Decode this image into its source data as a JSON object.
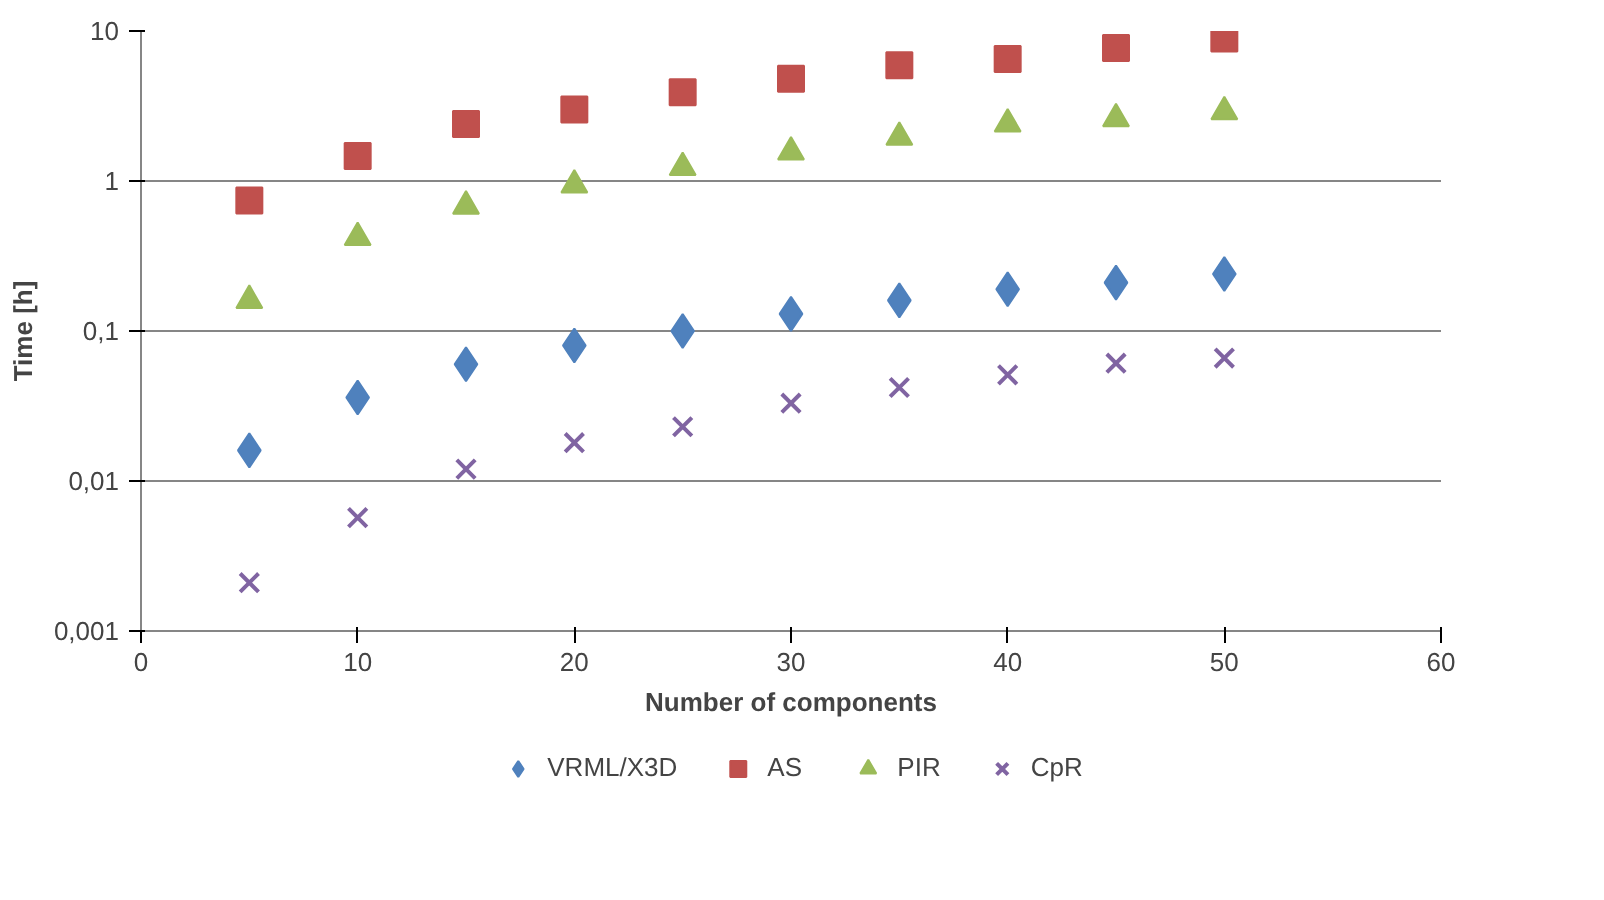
{
  "chart_data": {
    "type": "scatter",
    "xlabel": "Number of components",
    "ylabel": "Time [h]",
    "log": "y",
    "xlim": [
      0,
      60
    ],
    "xticks": [
      0,
      10,
      20,
      30,
      40,
      50,
      60
    ],
    "ylim": [
      0.001,
      10
    ],
    "yticks": [
      {
        "value": 0.001,
        "label": "0,001"
      },
      {
        "value": 0.01,
        "label": "0,01"
      },
      {
        "value": 0.1,
        "label": "0,1"
      },
      1,
      10
    ],
    "grid": "y",
    "legend": "bottom",
    "x": [
      5,
      10,
      15,
      20,
      25,
      30,
      35,
      40,
      45,
      50
    ],
    "series": [
      {
        "name": "VRML/X3D",
        "color": "#4f81bd",
        "marker": "diamond",
        "values": [
          0.016,
          0.036,
          0.06,
          0.08,
          0.1,
          0.13,
          0.16,
          0.19,
          0.21,
          0.24
        ]
      },
      {
        "name": "AS",
        "color": "#c0504d",
        "marker": "square",
        "values": [
          0.74,
          1.47,
          2.4,
          3.0,
          3.9,
          4.8,
          5.9,
          6.5,
          7.7,
          8.9
        ]
      },
      {
        "name": "PIR",
        "color": "#9bbb59",
        "marker": "triangle",
        "values": [
          0.16,
          0.42,
          0.68,
          0.94,
          1.23,
          1.56,
          1.96,
          2.4,
          2.6,
          2.9
        ]
      },
      {
        "name": "CpR",
        "color": "#8064a2",
        "marker": "cross",
        "values": [
          0.0021,
          0.0057,
          0.012,
          0.018,
          0.023,
          0.033,
          0.042,
          0.051,
          0.061,
          0.066
        ]
      }
    ]
  }
}
